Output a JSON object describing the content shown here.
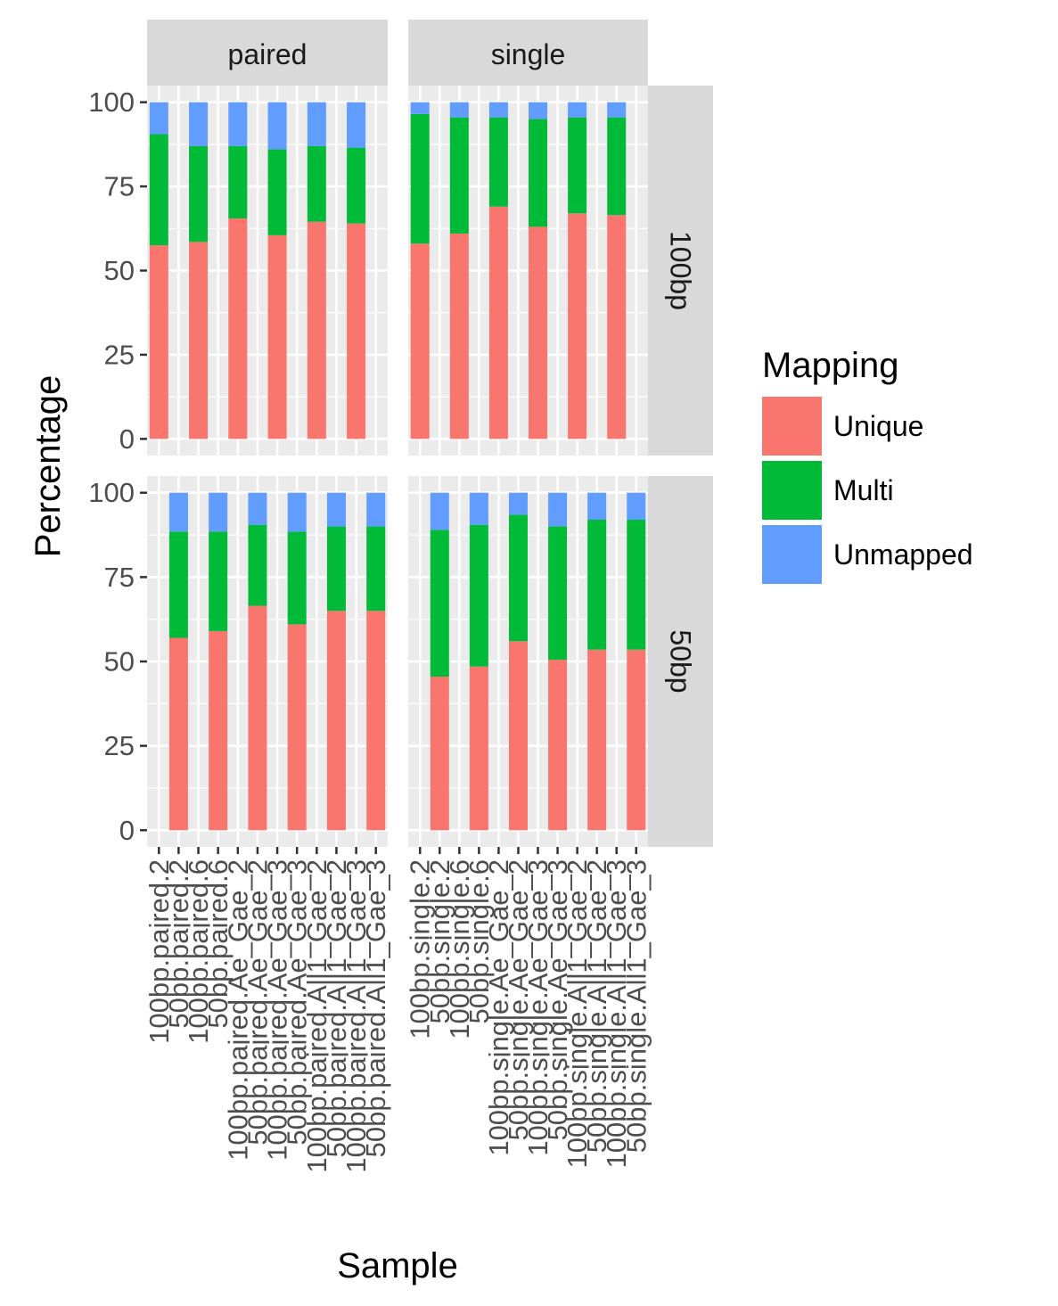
{
  "chart_data": {
    "type": "bar",
    "stacked": true,
    "xlabel": "Sample",
    "ylabel": "Percentage",
    "ylim": [
      0,
      100
    ],
    "yticks": [
      0,
      25,
      50,
      75,
      100
    ],
    "grid": true,
    "legend": {
      "title": "Mapping",
      "position": "right",
      "entries": [
        "Unique",
        "Multi",
        "Unmapped"
      ]
    },
    "colors": {
      "Unique": "#F8766D",
      "Multi": "#00BA38",
      "Unmapped": "#619CFF",
      "panel_bg": "#EBEBEB",
      "strip_bg": "#D9D9D9"
    },
    "col_facets": [
      "paired",
      "single"
    ],
    "row_facets": [
      "100bp",
      "50bp"
    ],
    "x_categories": {
      "paired": [
        "100bp.paired.2",
        "50bp.paired.2",
        "100bp.paired.6",
        "50bp.paired.6",
        "100bp.paired.Ae_Gae_2",
        "50bp.paired.Ae_Gae_2",
        "100bp.paired.Ae_Gae_3",
        "50bp.paired.Ae_Gae_3",
        "100bp.paired.All1_Gae_2",
        "50bp.paired.All1_Gae_2",
        "100bp.paired.All1_Gae_3",
        "50bp.paired.All1_Gae_3"
      ],
      "single": [
        "100bp.single.2",
        "50bp.single.2",
        "100bp.single.6",
        "50bp.single.6",
        "100bp.single.Ae_Gae_2",
        "50bp.single.Ae_Gae_2",
        "100bp.single.Ae_Gae_3",
        "50bp.single.Ae_Gae_3",
        "100bp.single.All1_Gae_2",
        "50bp.single.All1_Gae_2",
        "100bp.single.All1_Gae_3",
        "50bp.single.All1_Gae_3"
      ]
    },
    "panels": [
      {
        "row": "100bp",
        "col": "paired",
        "bars": [
          {
            "category": "100bp.paired.2",
            "Unique": 57.5,
            "Multi": 33.0,
            "Unmapped": 9.5
          },
          {
            "category": "100bp.paired.6",
            "Unique": 58.5,
            "Multi": 28.5,
            "Unmapped": 13.0
          },
          {
            "category": "100bp.paired.Ae_Gae_2",
            "Unique": 65.5,
            "Multi": 21.5,
            "Unmapped": 13.0
          },
          {
            "category": "100bp.paired.Ae_Gae_3",
            "Unique": 60.5,
            "Multi": 25.5,
            "Unmapped": 14.0
          },
          {
            "category": "100bp.paired.All1_Gae_2",
            "Unique": 64.5,
            "Multi": 22.5,
            "Unmapped": 13.0
          },
          {
            "category": "100bp.paired.All1_Gae_3",
            "Unique": 64.0,
            "Multi": 22.5,
            "Unmapped": 13.5
          }
        ]
      },
      {
        "row": "100bp",
        "col": "single",
        "bars": [
          {
            "category": "100bp.single.2",
            "Unique": 58.0,
            "Multi": 38.5,
            "Unmapped": 3.5
          },
          {
            "category": "100bp.single.6",
            "Unique": 61.0,
            "Multi": 34.5,
            "Unmapped": 4.5
          },
          {
            "category": "100bp.single.Ae_Gae_2",
            "Unique": 69.0,
            "Multi": 26.5,
            "Unmapped": 4.5
          },
          {
            "category": "100bp.single.Ae_Gae_3",
            "Unique": 63.0,
            "Multi": 32.0,
            "Unmapped": 5.0
          },
          {
            "category": "100bp.single.All1_Gae_2",
            "Unique": 67.0,
            "Multi": 28.5,
            "Unmapped": 4.5
          },
          {
            "category": "100bp.single.All1_Gae_3",
            "Unique": 66.5,
            "Multi": 29.0,
            "Unmapped": 4.5
          }
        ]
      },
      {
        "row": "50bp",
        "col": "paired",
        "bars": [
          {
            "category": "50bp.paired.2",
            "Unique": 57.0,
            "Multi": 31.5,
            "Unmapped": 11.5
          },
          {
            "category": "50bp.paired.6",
            "Unique": 59.0,
            "Multi": 29.5,
            "Unmapped": 11.5
          },
          {
            "category": "50bp.paired.Ae_Gae_2",
            "Unique": 66.5,
            "Multi": 24.0,
            "Unmapped": 9.5
          },
          {
            "category": "50bp.paired.Ae_Gae_3",
            "Unique": 61.0,
            "Multi": 27.5,
            "Unmapped": 11.5
          },
          {
            "category": "50bp.paired.All1_Gae_2",
            "Unique": 65.0,
            "Multi": 25.0,
            "Unmapped": 10.0
          },
          {
            "category": "50bp.paired.All1_Gae_3",
            "Unique": 65.0,
            "Multi": 25.0,
            "Unmapped": 10.0
          }
        ]
      },
      {
        "row": "50bp",
        "col": "single",
        "bars": [
          {
            "category": "50bp.single.2",
            "Unique": 45.5,
            "Multi": 43.5,
            "Unmapped": 11.0
          },
          {
            "category": "50bp.single.6",
            "Unique": 48.5,
            "Multi": 42.0,
            "Unmapped": 9.5
          },
          {
            "category": "50bp.single.Ae_Gae_2",
            "Unique": 56.0,
            "Multi": 37.5,
            "Unmapped": 6.5
          },
          {
            "category": "50bp.single.Ae_Gae_3",
            "Unique": 50.5,
            "Multi": 39.5,
            "Unmapped": 10.0
          },
          {
            "category": "50bp.single.All1_Gae_2",
            "Unique": 53.5,
            "Multi": 38.5,
            "Unmapped": 8.0
          },
          {
            "category": "50bp.single.All1_Gae_3",
            "Unique": 53.5,
            "Multi": 38.5,
            "Unmapped": 8.0
          }
        ]
      }
    ]
  }
}
